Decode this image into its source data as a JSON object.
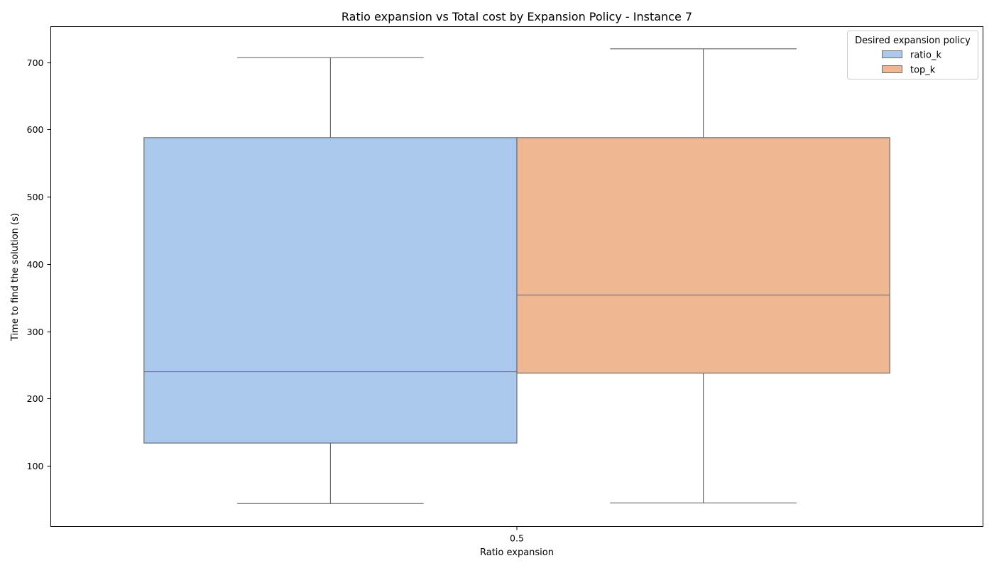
{
  "chart_data": {
    "type": "box",
    "title": "Ratio expansion vs Total cost by Expansion Policy - Instance 7",
    "xlabel": "Ratio expansion",
    "ylabel": "Time to find the solution (s)",
    "categories": [
      "0.5"
    ],
    "ylim": [
      10,
      753
    ],
    "yticks": [
      100,
      200,
      300,
      400,
      500,
      600,
      700
    ],
    "grid": false,
    "legend": {
      "title": "Desired expansion policy",
      "position": "top-right"
    },
    "series": [
      {
        "name": "ratio_k",
        "color": "#abc9ec",
        "boxes": [
          {
            "category": "0.5",
            "whisker_low": 44,
            "q1": 134,
            "median": 240,
            "q3": 588,
            "whisker_high": 707
          }
        ]
      },
      {
        "name": "top_k",
        "color": "#f0b793",
        "boxes": [
          {
            "category": "0.5",
            "whisker_low": 45,
            "q1": 238,
            "median": 354,
            "q3": 588,
            "whisker_high": 720
          }
        ]
      }
    ]
  }
}
